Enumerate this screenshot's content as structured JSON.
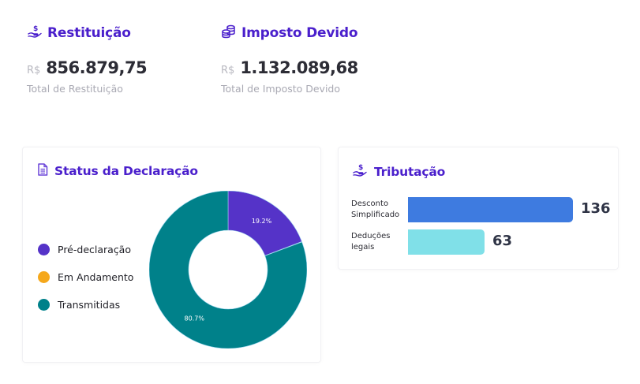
{
  "kpis": {
    "restituicao": {
      "title": "Restituição",
      "icon": "hand-dollar-icon",
      "currency": "R$",
      "value": "856.879,75",
      "subtitle": "Total de Restituição"
    },
    "imposto": {
      "title": "Imposto Devido",
      "icon": "coins-stack-icon",
      "currency": "R$",
      "value": "1.132.089,68",
      "subtitle": "Total de Imposto Devido"
    }
  },
  "status_card": {
    "title": "Status da Declaração",
    "icon": "document-icon",
    "legend": [
      {
        "label": "Pré-declaração",
        "color": "#5533c8"
      },
      {
        "label": "Em Andamento",
        "color": "#f5a81c"
      },
      {
        "label": "Transmitidas",
        "color": "#00818a"
      }
    ]
  },
  "tributacao_card": {
    "title": "Tributação",
    "icon": "hand-dollar-icon",
    "bars": [
      {
        "label_line1": "Desconto",
        "label_line2": "Simplificado",
        "value": "136",
        "color": "#3e7be0"
      },
      {
        "label_line1": "Deduções",
        "label_line2": "legais",
        "value": "63",
        "color": "#80e0e8"
      }
    ]
  },
  "colors": {
    "accent": "#4a1fcc",
    "purple": "#5533c8",
    "orange": "#f5a81c",
    "teal": "#00818a",
    "blue": "#3e7be0",
    "cyan": "#80e0e8"
  },
  "chart_data": [
    {
      "type": "pie",
      "title": "Status da Declaração",
      "variant": "donut",
      "categories": [
        "Pré-declaração",
        "Em Andamento",
        "Transmitidas"
      ],
      "values": [
        19.2,
        0.1,
        80.7
      ],
      "value_labels": [
        "19.2%",
        "",
        "80.7%"
      ],
      "colors": [
        "#5533c8",
        "#f5a81c",
        "#00818a"
      ],
      "legend_position": "left"
    },
    {
      "type": "bar",
      "orientation": "horizontal",
      "title": "Tributação",
      "categories": [
        "Desconto Simplificado",
        "Deduções legais"
      ],
      "values": [
        136,
        63
      ],
      "colors": [
        "#3e7be0",
        "#80e0e8"
      ],
      "grid": false,
      "data_labels": true
    }
  ]
}
